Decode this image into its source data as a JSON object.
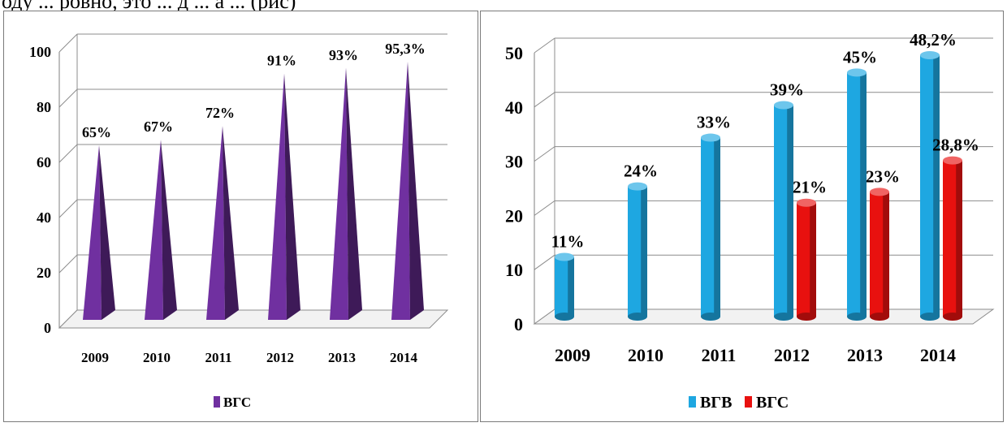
{
  "page": {
    "top_text": "оду ... ровно, это ... д ... а ... (рис)"
  },
  "chart_data": [
    {
      "type": "bar",
      "categories": [
        "2009",
        "2010",
        "2011",
        "2012",
        "2013",
        "2014"
      ],
      "series": [
        {
          "name": "ВГС",
          "values": [
            65,
            67,
            72,
            91,
            93,
            95.3
          ],
          "labels": [
            "65%",
            "67%",
            "72%",
            "91%",
            "93%",
            "95,3%"
          ],
          "color": "#7030a0"
        }
      ],
      "ylim": [
        0,
        100
      ],
      "yticks": [
        "0",
        "20",
        "40",
        "60",
        "80",
        "100"
      ],
      "shape": "pyramid",
      "grid": true,
      "legend_position": "bottom"
    },
    {
      "type": "bar",
      "categories": [
        "2009",
        "2010",
        "2011",
        "2012",
        "2013",
        "2014"
      ],
      "series": [
        {
          "name": "ВГВ",
          "values": [
            11,
            24,
            33,
            39,
            45,
            48.2
          ],
          "labels": [
            "11%",
            "24%",
            "33%",
            "39%",
            "45%",
            "48,2%"
          ],
          "color": "#1ea7e1"
        },
        {
          "name": "ВГС",
          "values": [
            null,
            null,
            null,
            21,
            23,
            28.8
          ],
          "labels": [
            "",
            "",
            "",
            "21%",
            "23%",
            "28,8%"
          ],
          "color": "#e8110f"
        }
      ],
      "ylim": [
        0,
        50
      ],
      "yticks": [
        "0",
        "10",
        "20",
        "30",
        "40",
        "50"
      ],
      "shape": "cylinder",
      "grid": true,
      "legend_position": "bottom"
    }
  ]
}
